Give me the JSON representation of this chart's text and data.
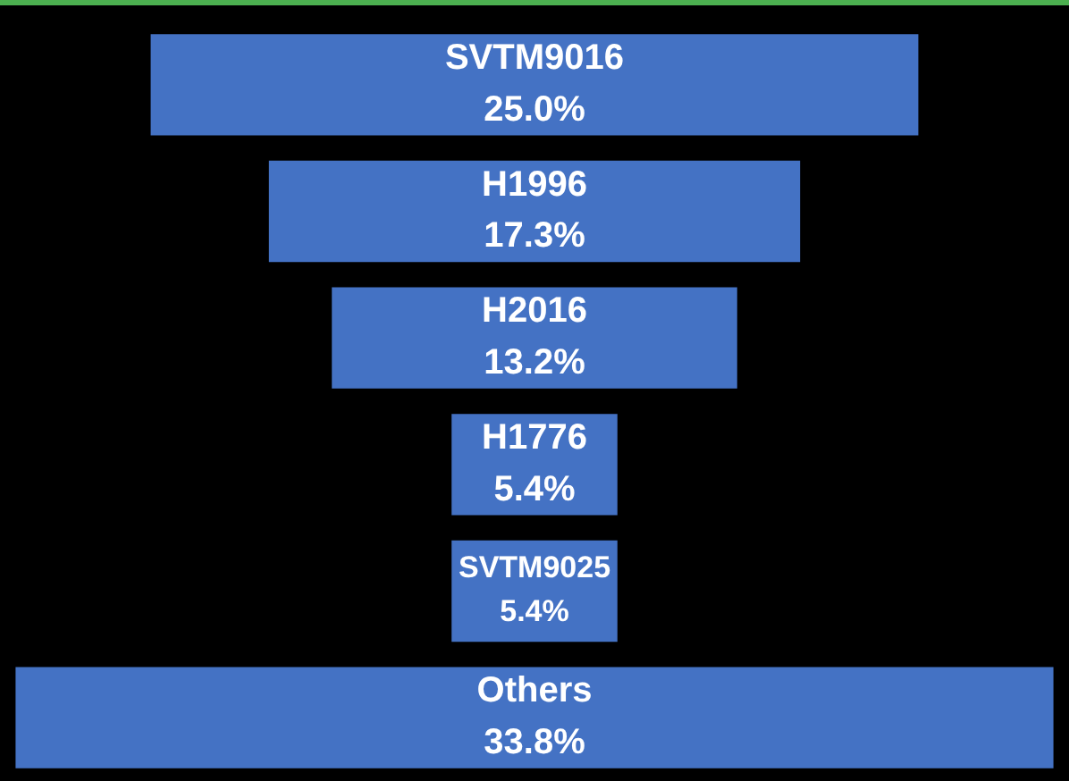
{
  "chart_data": {
    "type": "other",
    "categories": [
      "SVTM9016",
      "H1996",
      "H2016",
      "H1776",
      "SVTM9025",
      "Others"
    ],
    "values": [
      25.0,
      17.3,
      13.2,
      5.4,
      5.4,
      33.8
    ],
    "value_labels": [
      "25.0%",
      "17.3%",
      "13.2%",
      "5.4%",
      "5.4%",
      "33.8%"
    ],
    "color": "#4472c4"
  }
}
